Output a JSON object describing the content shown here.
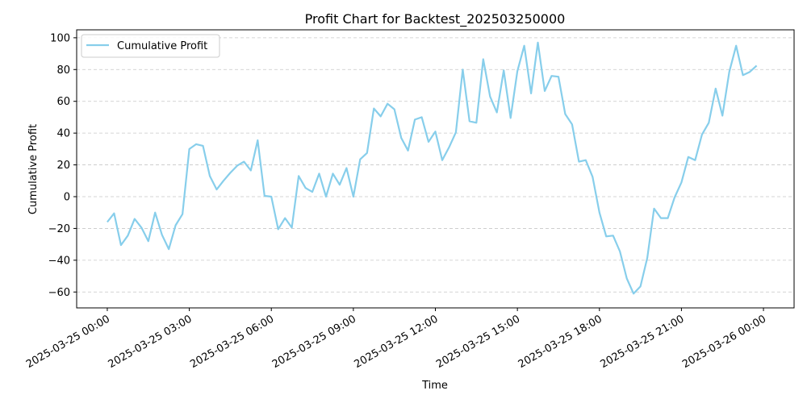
{
  "chart_data": {
    "type": "line",
    "title": "Profit Chart for Backtest_202503250000",
    "xlabel": "Time",
    "ylabel": "Cumulative Profit",
    "x_unit": "hours since 2025-03-25 00:00",
    "xlim": [
      -1.12,
      25.12
    ],
    "ylim": [
      -70,
      105
    ],
    "yticks": [
      -60,
      -40,
      -20,
      0,
      20,
      40,
      60,
      80,
      100
    ],
    "xticks": [
      {
        "value": 0,
        "label": "2025-03-25 00:00"
      },
      {
        "value": 3,
        "label": "2025-03-25 03:00"
      },
      {
        "value": 6,
        "label": "2025-03-25 06:00"
      },
      {
        "value": 9,
        "label": "2025-03-25 09:00"
      },
      {
        "value": 12,
        "label": "2025-03-25 12:00"
      },
      {
        "value": 15,
        "label": "2025-03-25 15:00"
      },
      {
        "value": 18,
        "label": "2025-03-25 18:00"
      },
      {
        "value": 21,
        "label": "2025-03-25 21:00"
      },
      {
        "value": 24,
        "label": "2025-03-26 00:00"
      }
    ],
    "grid": {
      "y": true,
      "x": false,
      "style": "dashed"
    },
    "legend_position": "top-left",
    "series": [
      {
        "name": "Cumulative Profit",
        "color": "#87CEEB",
        "points": [
          {
            "x": 0.0,
            "y": -16
          },
          {
            "x": 0.25,
            "y": -10.5
          },
          {
            "x": 0.5,
            "y": -30.5
          },
          {
            "x": 0.75,
            "y": -24.5
          },
          {
            "x": 1.0,
            "y": -14
          },
          {
            "x": 1.25,
            "y": -19.5
          },
          {
            "x": 1.5,
            "y": -28
          },
          {
            "x": 1.75,
            "y": -10
          },
          {
            "x": 2.0,
            "y": -24
          },
          {
            "x": 2.25,
            "y": -33
          },
          {
            "x": 2.5,
            "y": -18
          },
          {
            "x": 2.75,
            "y": -11
          },
          {
            "x": 3.0,
            "y": 30
          },
          {
            "x": 3.25,
            "y": 33
          },
          {
            "x": 3.5,
            "y": 32
          },
          {
            "x": 3.75,
            "y": 13
          },
          {
            "x": 4.0,
            "y": 4.5
          },
          {
            "x": 4.25,
            "y": 10
          },
          {
            "x": 4.5,
            "y": 15
          },
          {
            "x": 4.75,
            "y": 19.5
          },
          {
            "x": 5.0,
            "y": 22
          },
          {
            "x": 5.25,
            "y": 16.5
          },
          {
            "x": 5.5,
            "y": 35.5
          },
          {
            "x": 5.75,
            "y": 0.5
          },
          {
            "x": 6.0,
            "y": 0
          },
          {
            "x": 6.25,
            "y": -20.5
          },
          {
            "x": 6.5,
            "y": -13.5
          },
          {
            "x": 6.75,
            "y": -19.5
          },
          {
            "x": 7.0,
            "y": 13
          },
          {
            "x": 7.25,
            "y": 5.5
          },
          {
            "x": 7.5,
            "y": 3
          },
          {
            "x": 7.75,
            "y": 14.5
          },
          {
            "x": 8.0,
            "y": 0
          },
          {
            "x": 8.25,
            "y": 14.5
          },
          {
            "x": 8.5,
            "y": 7.5
          },
          {
            "x": 8.75,
            "y": 18
          },
          {
            "x": 9.0,
            "y": 0
          },
          {
            "x": 9.25,
            "y": 23.5
          },
          {
            "x": 9.5,
            "y": 27.5
          },
          {
            "x": 9.75,
            "y": 55.5
          },
          {
            "x": 10.0,
            "y": 50.5
          },
          {
            "x": 10.25,
            "y": 58.5
          },
          {
            "x": 10.5,
            "y": 55
          },
          {
            "x": 10.75,
            "y": 37
          },
          {
            "x": 11.0,
            "y": 29
          },
          {
            "x": 11.25,
            "y": 48.5
          },
          {
            "x": 11.5,
            "y": 50
          },
          {
            "x": 11.75,
            "y": 34.5
          },
          {
            "x": 12.0,
            "y": 41
          },
          {
            "x": 12.25,
            "y": 23
          },
          {
            "x": 12.5,
            "y": 31
          },
          {
            "x": 12.75,
            "y": 40.5
          },
          {
            "x": 13.0,
            "y": 80
          },
          {
            "x": 13.25,
            "y": 47.5
          },
          {
            "x": 13.5,
            "y": 46.5
          },
          {
            "x": 13.75,
            "y": 86.5
          },
          {
            "x": 14.0,
            "y": 63
          },
          {
            "x": 14.25,
            "y": 53
          },
          {
            "x": 14.5,
            "y": 79.5
          },
          {
            "x": 14.75,
            "y": 49.5
          },
          {
            "x": 15.0,
            "y": 79
          },
          {
            "x": 15.25,
            "y": 95
          },
          {
            "x": 15.5,
            "y": 65
          },
          {
            "x": 15.75,
            "y": 97
          },
          {
            "x": 16.0,
            "y": 66.5
          },
          {
            "x": 16.25,
            "y": 76
          },
          {
            "x": 16.5,
            "y": 75.5
          },
          {
            "x": 16.75,
            "y": 52
          },
          {
            "x": 17.0,
            "y": 45.5
          },
          {
            "x": 17.25,
            "y": 22
          },
          {
            "x": 17.5,
            "y": 23
          },
          {
            "x": 17.75,
            "y": 12.5
          },
          {
            "x": 18.0,
            "y": -10
          },
          {
            "x": 18.25,
            "y": -25
          },
          {
            "x": 18.5,
            "y": -24.5
          },
          {
            "x": 18.75,
            "y": -34.5
          },
          {
            "x": 19.0,
            "y": -51.5
          },
          {
            "x": 19.25,
            "y": -61
          },
          {
            "x": 19.5,
            "y": -56.5
          },
          {
            "x": 19.75,
            "y": -38.5
          },
          {
            "x": 20.0,
            "y": -7.5
          },
          {
            "x": 20.25,
            "y": -13.5
          },
          {
            "x": 20.5,
            "y": -13.5
          },
          {
            "x": 20.75,
            "y": -0.5
          },
          {
            "x": 21.0,
            "y": 9
          },
          {
            "x": 21.25,
            "y": 25
          },
          {
            "x": 21.5,
            "y": 23
          },
          {
            "x": 21.75,
            "y": 39
          },
          {
            "x": 22.0,
            "y": 46.5
          },
          {
            "x": 22.25,
            "y": 68
          },
          {
            "x": 22.5,
            "y": 51
          },
          {
            "x": 22.75,
            "y": 78.5
          },
          {
            "x": 23.0,
            "y": 95
          },
          {
            "x": 23.25,
            "y": 76.5
          },
          {
            "x": 23.5,
            "y": 78.5
          },
          {
            "x": 23.75,
            "y": 82.5
          }
        ]
      }
    ]
  }
}
